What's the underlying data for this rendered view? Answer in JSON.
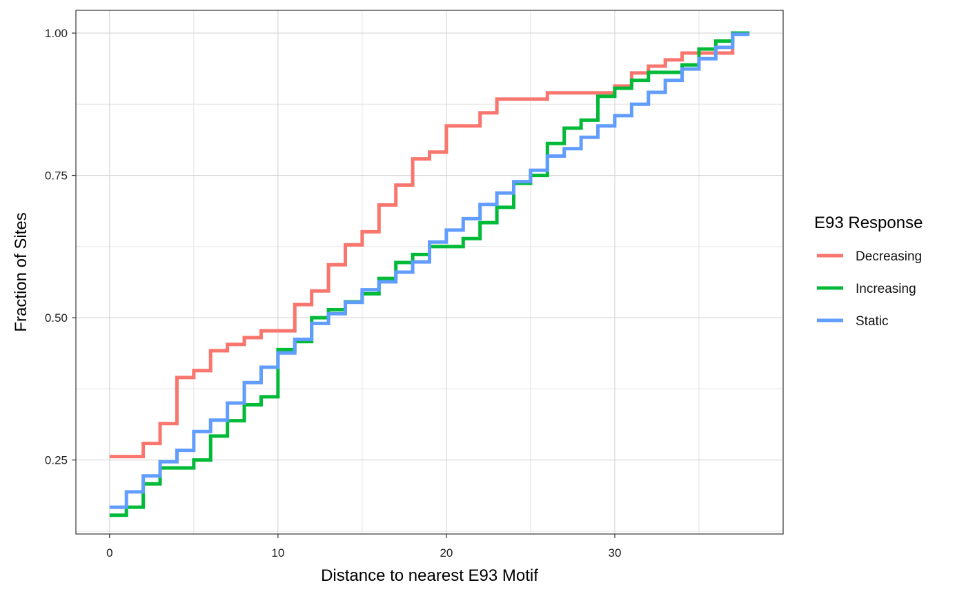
{
  "chart_data": {
    "type": "line",
    "step": true,
    "title": "",
    "xlabel": "Distance to nearest E93 Motif",
    "ylabel": "Fraction of Sites",
    "xlim": [
      -2,
      40
    ],
    "ylim": [
      0.12,
      1.04
    ],
    "x_ticks": [
      0,
      10,
      20,
      30
    ],
    "x_tick_labels": [
      "0",
      "10",
      "20",
      "30"
    ],
    "y_ticks": [
      0.25,
      0.5,
      0.75,
      1.0
    ],
    "y_tick_labels": [
      "0.25",
      "0.50",
      "0.75",
      "1.00"
    ],
    "grid": true,
    "legend": {
      "title": "E93 Response",
      "position": "right"
    },
    "series": [
      {
        "name": "Decreasing",
        "color": "#F8766D",
        "x": [
          0,
          1,
          2,
          3,
          4,
          5,
          6,
          7,
          8,
          9,
          10,
          11,
          12,
          13,
          14,
          15,
          16,
          17,
          18,
          19,
          20,
          21,
          22,
          23,
          24,
          25,
          26,
          27,
          28,
          29,
          30,
          31,
          32,
          33,
          34,
          35,
          36,
          37,
          38
        ],
        "y": [
          0.256,
          0.256,
          0.279,
          0.314,
          0.395,
          0.407,
          0.442,
          0.453,
          0.465,
          0.477,
          0.477,
          0.523,
          0.547,
          0.593,
          0.628,
          0.651,
          0.698,
          0.733,
          0.779,
          0.791,
          0.837,
          0.837,
          0.86,
          0.884,
          0.884,
          0.884,
          0.895,
          0.895,
          0.895,
          0.895,
          0.907,
          0.93,
          0.942,
          0.953,
          0.965,
          0.965,
          0.965,
          1.0,
          1.0
        ]
      },
      {
        "name": "Increasing",
        "color": "#00BA38",
        "x": [
          0,
          1,
          2,
          3,
          4,
          5,
          6,
          7,
          8,
          9,
          10,
          11,
          12,
          13,
          14,
          15,
          16,
          17,
          18,
          19,
          20,
          21,
          22,
          23,
          24,
          25,
          26,
          27,
          28,
          29,
          30,
          31,
          32,
          33,
          34,
          35,
          36,
          37,
          38
        ],
        "y": [
          0.153,
          0.167,
          0.208,
          0.236,
          0.236,
          0.25,
          0.292,
          0.319,
          0.347,
          0.361,
          0.444,
          0.458,
          0.5,
          0.514,
          0.528,
          0.542,
          0.569,
          0.597,
          0.611,
          0.625,
          0.625,
          0.639,
          0.667,
          0.694,
          0.736,
          0.75,
          0.806,
          0.833,
          0.847,
          0.889,
          0.903,
          0.917,
          0.931,
          0.931,
          0.944,
          0.972,
          0.986,
          1.0,
          1.0
        ]
      },
      {
        "name": "Static",
        "color": "#619CFF",
        "x": [
          0,
          1,
          2,
          3,
          4,
          5,
          6,
          7,
          8,
          9,
          10,
          11,
          12,
          13,
          14,
          15,
          16,
          17,
          18,
          19,
          20,
          21,
          22,
          23,
          24,
          25,
          26,
          27,
          28,
          29,
          30,
          31,
          32,
          33,
          34,
          35,
          36,
          37,
          38
        ],
        "y": [
          0.167,
          0.194,
          0.222,
          0.247,
          0.267,
          0.3,
          0.32,
          0.35,
          0.386,
          0.413,
          0.438,
          0.462,
          0.49,
          0.507,
          0.527,
          0.549,
          0.563,
          0.58,
          0.598,
          0.633,
          0.654,
          0.674,
          0.699,
          0.719,
          0.739,
          0.759,
          0.784,
          0.797,
          0.817,
          0.837,
          0.855,
          0.875,
          0.896,
          0.917,
          0.937,
          0.955,
          0.975,
          0.998,
          0.998
        ]
      }
    ]
  }
}
